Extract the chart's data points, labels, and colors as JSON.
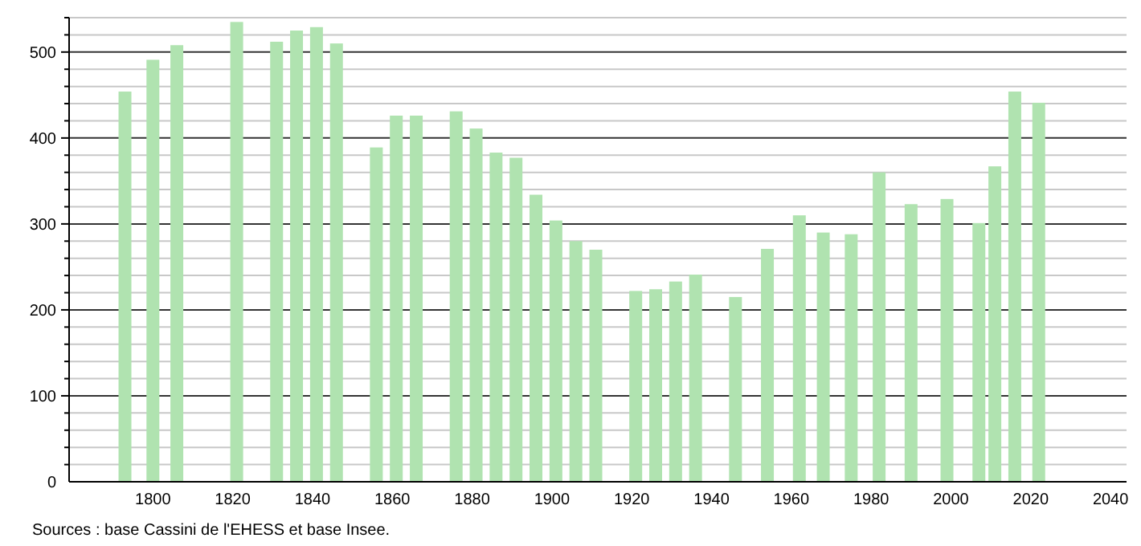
{
  "chart_data": {
    "type": "bar",
    "x": [
      1793,
      1800,
      1806,
      1821,
      1831,
      1836,
      1841,
      1846,
      1856,
      1861,
      1866,
      1876,
      1881,
      1886,
      1891,
      1896,
      1901,
      1906,
      1911,
      1921,
      1926,
      1931,
      1936,
      1946,
      1954,
      1962,
      1968,
      1975,
      1982,
      1990,
      1999,
      2007,
      2011,
      2016,
      2022
    ],
    "values": [
      454,
      491,
      508,
      535,
      512,
      525,
      529,
      510,
      389,
      426,
      426,
      431,
      411,
      383,
      377,
      334,
      304,
      280,
      270,
      222,
      224,
      233,
      241,
      215,
      271,
      310,
      290,
      288,
      360,
      323,
      329,
      301,
      367,
      454,
      441
    ],
    "color": "#b0e3b0",
    "xlim": [
      1779,
      2044
    ],
    "xticks": [
      1800,
      1820,
      1840,
      1860,
      1880,
      1900,
      1920,
      1940,
      1960,
      1980,
      2000,
      2020,
      2040
    ],
    "ylim": [
      0,
      540
    ],
    "yticks": [
      0,
      {
        "value": 20,
        "label": null
      },
      {
        "value": 40,
        "label": null
      },
      {
        "value": 60,
        "label": null
      },
      {
        "value": 80,
        "label": null
      },
      100,
      {
        "value": 120,
        "label": null
      },
      {
        "value": 140,
        "label": null
      },
      {
        "value": 160,
        "label": null
      },
      {
        "value": 180,
        "label": null
      },
      200,
      {
        "value": 220,
        "label": null
      },
      {
        "value": 240,
        "label": null
      },
      {
        "value": 260,
        "label": null
      },
      {
        "value": 280,
        "label": null
      },
      300,
      {
        "value": 320,
        "label": null
      },
      {
        "value": 340,
        "label": null
      },
      {
        "value": 360,
        "label": null
      },
      {
        "value": 380,
        "label": null
      },
      400,
      {
        "value": 420,
        "label": null
      },
      {
        "value": 440,
        "label": null
      },
      {
        "value": 460,
        "label": null
      },
      {
        "value": 480,
        "label": null
      },
      500,
      {
        "value": 520,
        "label": null
      },
      {
        "value": 540,
        "label": null
      }
    ],
    "grid": "y",
    "annotations": [
      "Sources : base Cassini de l'EHESS et base Insee."
    ]
  }
}
